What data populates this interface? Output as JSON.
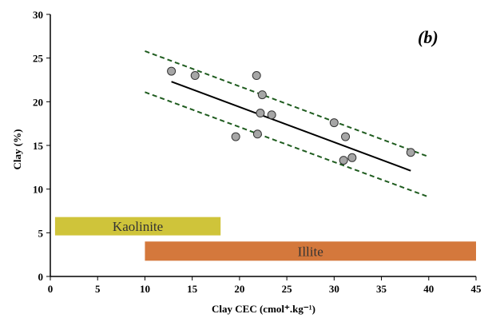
{
  "chart_data": {
    "type": "scatter",
    "panel_label": "(b)",
    "xlabel": "Clay CEC (cmol⁺.kg⁻¹)",
    "ylabel": "Clay (%)",
    "xlim": [
      0,
      45
    ],
    "ylim": [
      0,
      30
    ],
    "x_ticks": [
      0,
      5,
      10,
      15,
      20,
      25,
      30,
      35,
      40,
      45
    ],
    "y_ticks": [
      0,
      5,
      10,
      15,
      20,
      25,
      30
    ],
    "grid": false,
    "series": [
      {
        "points": [
          {
            "x": 12.8,
            "y": 23.5
          },
          {
            "x": 15.3,
            "y": 23.0
          },
          {
            "x": 19.6,
            "y": 16.0
          },
          {
            "x": 21.8,
            "y": 23.0
          },
          {
            "x": 21.9,
            "y": 16.3
          },
          {
            "x": 22.2,
            "y": 18.7
          },
          {
            "x": 22.4,
            "y": 20.8
          },
          {
            "x": 23.4,
            "y": 18.5
          },
          {
            "x": 30.0,
            "y": 17.6
          },
          {
            "x": 31.0,
            "y": 13.3
          },
          {
            "x": 31.2,
            "y": 16.0
          },
          {
            "x": 31.9,
            "y": 13.6
          },
          {
            "x": 38.1,
            "y": 14.2
          }
        ],
        "color": "#a6a6a6"
      }
    ],
    "trend_line": {
      "x": [
        12.8,
        38.1
      ],
      "y": [
        22.3,
        12.1
      ],
      "color": "#000000"
    },
    "confidence_lines": [
      {
        "x": [
          10.0,
          40.0
        ],
        "y": [
          25.8,
          13.7
        ],
        "color": "#1f5c1f"
      },
      {
        "x": [
          10.0,
          40.0
        ],
        "y": [
          21.1,
          9.1
        ],
        "color": "#1f5c1f"
      }
    ],
    "bands": [
      {
        "label": "Kaolinite",
        "x_range": [
          0.5,
          18.0
        ],
        "y_range": [
          4.7,
          6.8
        ],
        "color": "#cfc43a"
      },
      {
        "label": "Illite",
        "x_range": [
          10.0,
          45.0
        ],
        "y_range": [
          1.8,
          4.0
        ],
        "color": "#d4783c"
      }
    ]
  }
}
